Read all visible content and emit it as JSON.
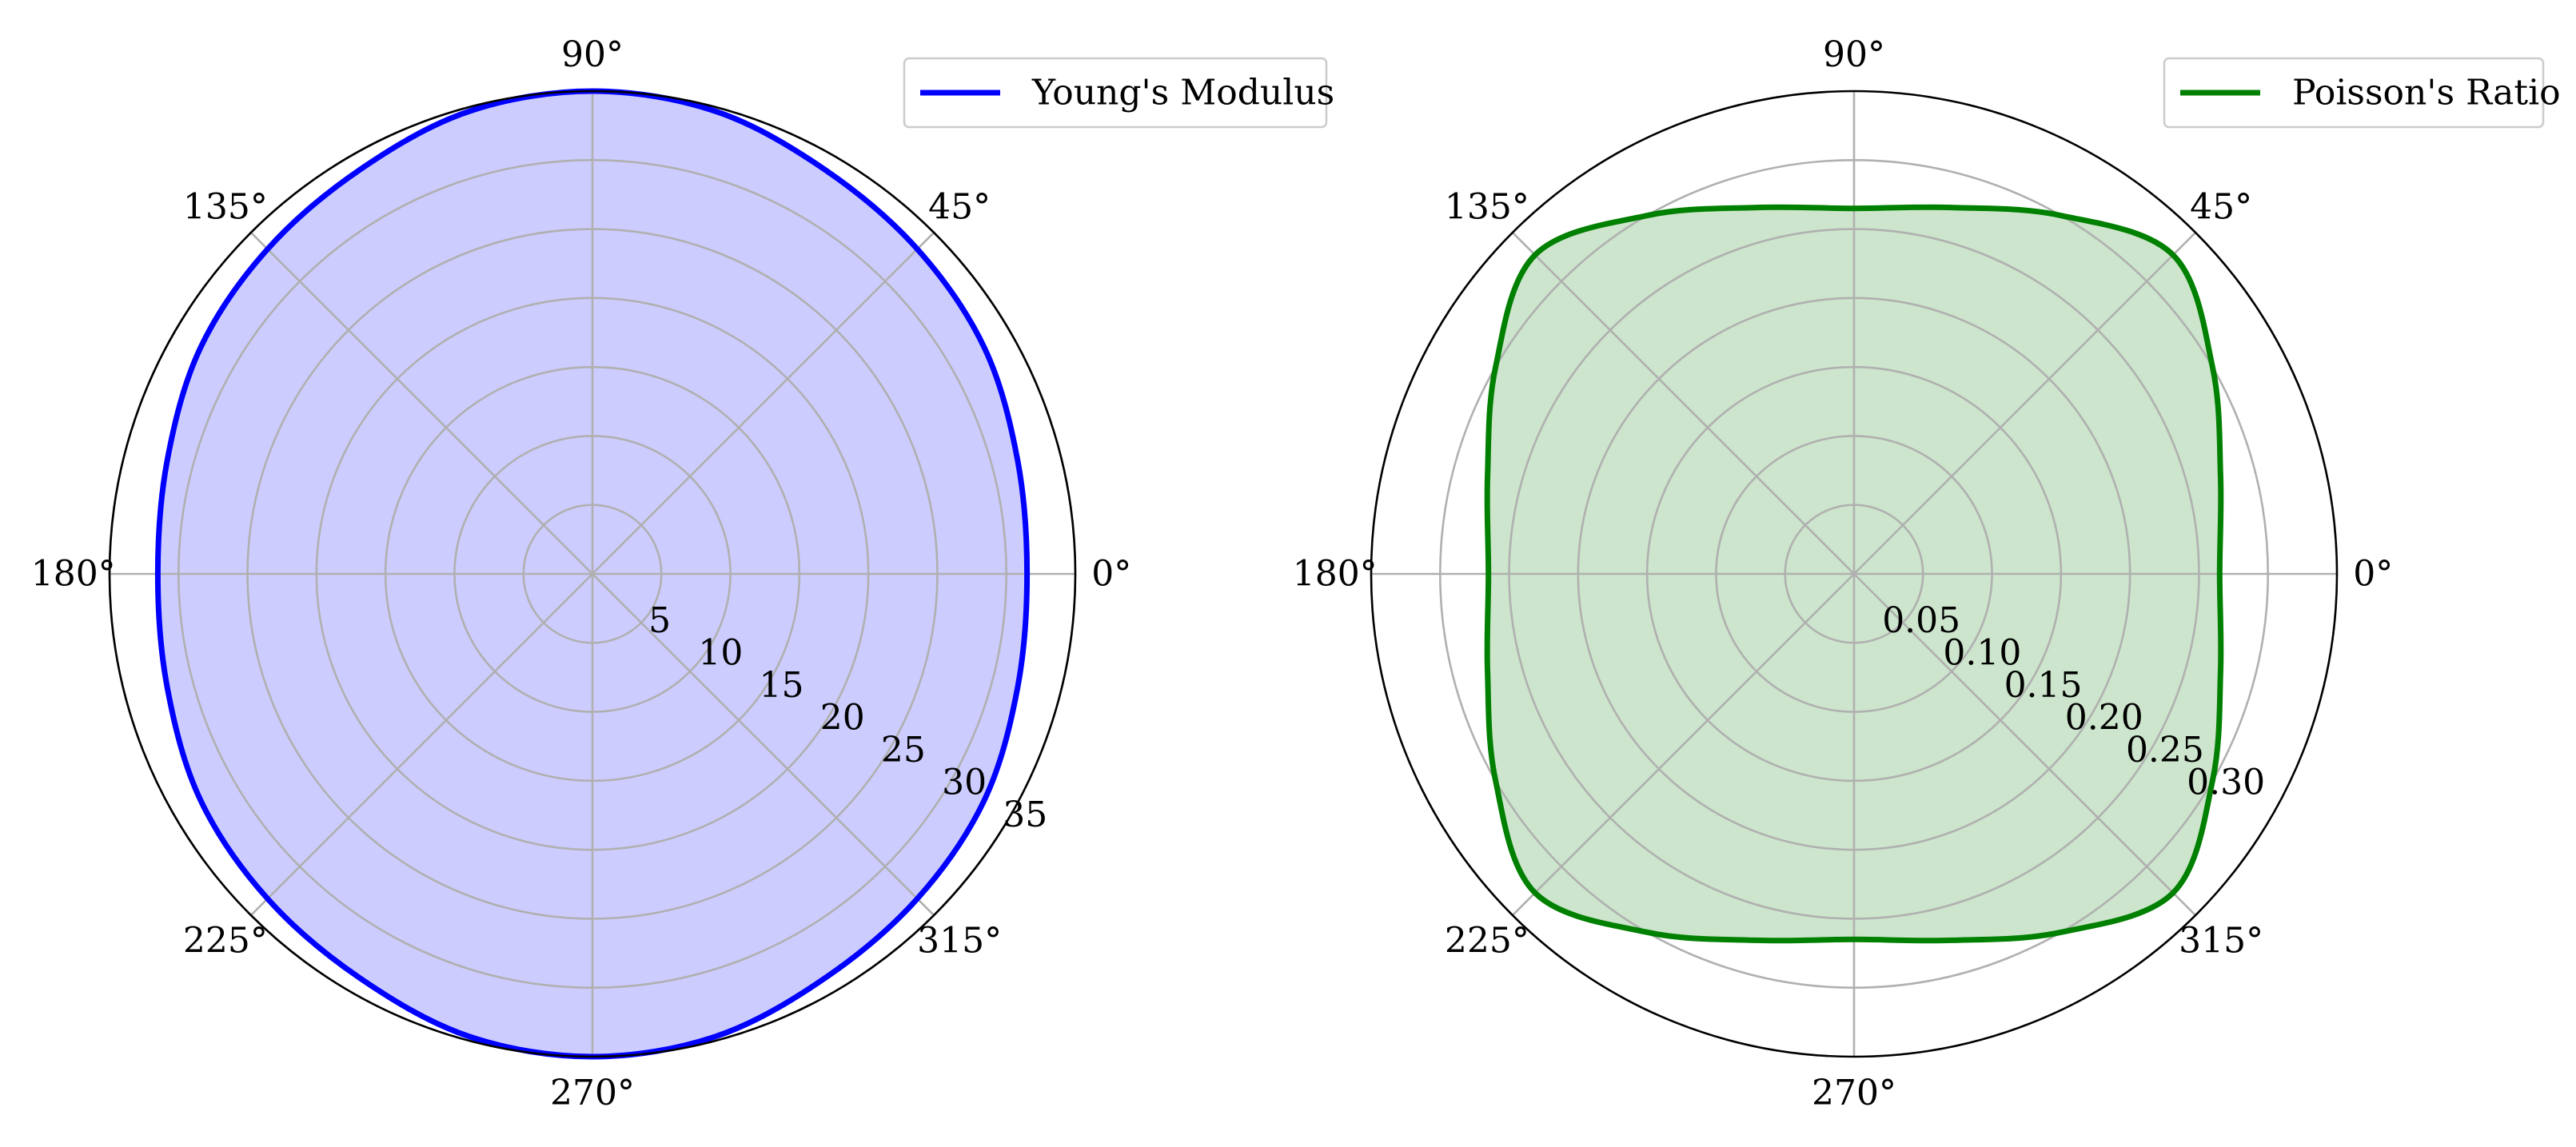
{
  "chart_data": [
    {
      "type": "polar-area",
      "theta_unit": "degrees",
      "theta_tick_labels": [
        "0°",
        "45°",
        "90°",
        "135°",
        "180°",
        "225°",
        "270°",
        "315°"
      ],
      "theta_ticks": [
        0,
        45,
        90,
        135,
        180,
        225,
        270,
        315
      ],
      "r_ticks": [
        5,
        10,
        15,
        20,
        25,
        30,
        35
      ],
      "r_tick_labels": [
        "5",
        "10",
        "15",
        "20",
        "25",
        "30",
        "35"
      ],
      "rlim": [
        0,
        35
      ],
      "grid": true,
      "legend_position": "top-right",
      "series": [
        {
          "name": "Young's Modulus",
          "color": "#0000ff",
          "fill_color": "#ccccff",
          "theta": [
            0,
            15,
            30,
            45,
            60,
            75,
            90,
            105,
            120,
            135,
            150,
            165,
            180,
            195,
            210,
            225,
            240,
            255,
            270,
            285,
            300,
            315,
            330,
            345,
            360
          ],
          "r": [
            31.5,
            31.9,
            32.8,
            33.3,
            33.8,
            34.7,
            35.0,
            34.7,
            33.8,
            33.3,
            32.8,
            31.9,
            31.5,
            31.9,
            32.8,
            33.3,
            33.8,
            34.7,
            35.0,
            34.7,
            33.8,
            33.3,
            32.8,
            31.9,
            31.5
          ]
        }
      ]
    },
    {
      "type": "polar-area",
      "theta_unit": "degrees",
      "theta_tick_labels": [
        "0°",
        "45°",
        "90°",
        "135°",
        "180°",
        "225°",
        "270°",
        "315°"
      ],
      "theta_ticks": [
        0,
        45,
        90,
        135,
        180,
        225,
        270,
        315
      ],
      "r_ticks": [
        0.05,
        0.1,
        0.15,
        0.2,
        0.25,
        0.3
      ],
      "r_tick_labels": [
        "0.05",
        "0.10",
        "0.15",
        "0.20",
        "0.25",
        "0.30"
      ],
      "rlim": [
        0,
        0.35
      ],
      "grid": true,
      "legend_position": "top-right",
      "series": [
        {
          "name": "Poisson's Ratio",
          "color": "#008000",
          "fill_color": "#cce5cc",
          "theta": [
            0,
            15,
            30,
            45,
            60,
            75,
            90,
            105,
            120,
            135,
            150,
            165,
            180,
            195,
            210,
            225,
            240,
            255,
            270,
            285,
            300,
            315,
            330,
            345,
            360
          ],
          "r": [
            0.265,
            0.275,
            0.3,
            0.327,
            0.3,
            0.275,
            0.265,
            0.275,
            0.3,
            0.327,
            0.3,
            0.275,
            0.265,
            0.275,
            0.3,
            0.327,
            0.3,
            0.275,
            0.265,
            0.275,
            0.3,
            0.327,
            0.3,
            0.275,
            0.265
          ]
        }
      ]
    }
  ]
}
